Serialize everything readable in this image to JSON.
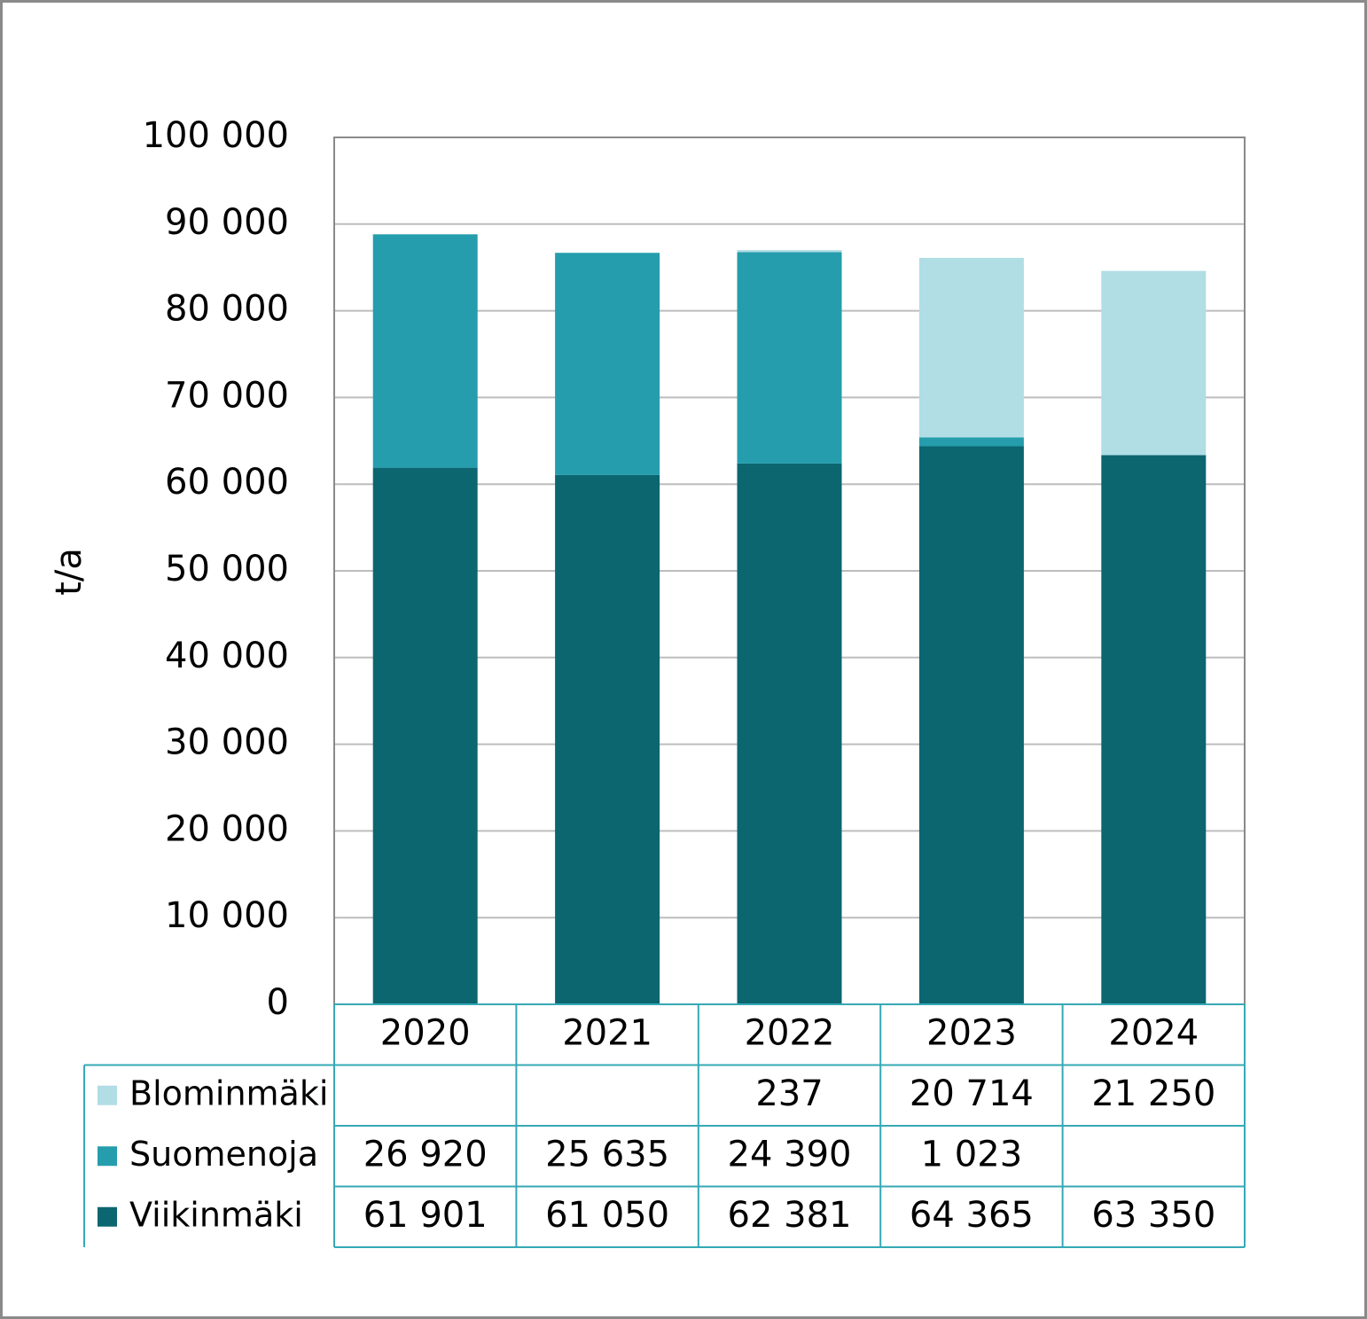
{
  "chart_data": {
    "type": "stacked_bar",
    "y_label": "t/a",
    "categories": [
      "2020",
      "2021",
      "2022",
      "2023",
      "2024"
    ],
    "series": [
      {
        "name": "Viikinmäki",
        "color": "#0b6670",
        "values": [
          61901,
          61050,
          62381,
          64365,
          63350
        ],
        "value_labels": [
          "61 901",
          "61 050",
          "62 381",
          "64 365",
          "63 350"
        ]
      },
      {
        "name": "Suomenoja",
        "color": "#259dad",
        "values": [
          26920,
          25635,
          24390,
          1023,
          null
        ],
        "value_labels": [
          "26 920",
          "25 635",
          "24 390",
          "1 023",
          null
        ]
      },
      {
        "name": "Blominmäki",
        "color": "#b1dde5",
        "values": [
          null,
          null,
          237,
          20714,
          21250
        ],
        "value_labels": [
          null,
          null,
          "237",
          "20 714",
          "21 250"
        ]
      }
    ],
    "ylim": [
      0,
      100000
    ],
    "yticks": [
      0,
      {
        "value": 10000,
        "label": "10 000"
      },
      {
        "value": 20000,
        "label": "20 000"
      },
      {
        "value": 30000,
        "label": "30 000"
      },
      {
        "value": 40000,
        "label": "40 000"
      },
      {
        "value": 50000,
        "label": "50 000"
      },
      {
        "value": 60000,
        "label": "60 000"
      },
      {
        "value": 70000,
        "label": "70 000"
      },
      {
        "value": 80000,
        "label": "80 000"
      },
      {
        "value": 90000,
        "label": "90 000"
      },
      {
        "value": 100000,
        "label": "100 000"
      }
    ],
    "grid": true
  }
}
